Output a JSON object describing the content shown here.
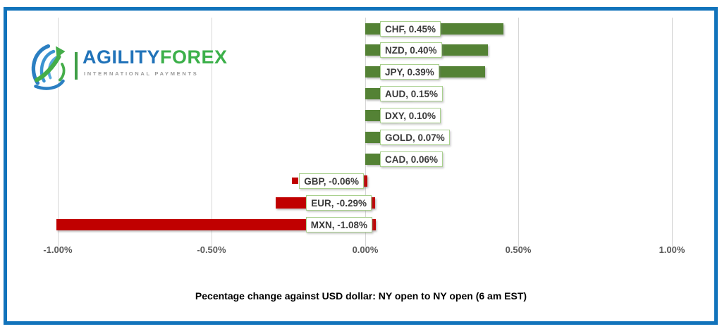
{
  "logo": {
    "brand_primary": "AGILITY",
    "brand_secondary": "FOREX",
    "tagline": "INTERNATIONAL PAYMENTS",
    "brand_primary_color": "#2173B9",
    "brand_secondary_color": "#3CB04A"
  },
  "frame": {
    "border_color": "#1173BB"
  },
  "chart_data": {
    "type": "bar",
    "orientation": "horizontal",
    "title": "Pecentage change against USD dollar: NY open to NY open  (6 am EST)",
    "categories": [
      "CHF",
      "NZD",
      "JPY",
      "AUD",
      "DXY",
      "GOLD",
      "CAD",
      "GBP",
      "EUR",
      "MXN"
    ],
    "values": [
      0.45,
      0.4,
      0.39,
      0.15,
      0.1,
      0.07,
      0.06,
      -0.06,
      -0.29,
      -1.08
    ],
    "labels": [
      "CHF, 0.45%",
      "NZD, 0.40%",
      "JPY, 0.39%",
      "AUD, 0.15%",
      "DXY, 0.10%",
      "GOLD, 0.07%",
      "CAD, 0.06%",
      "GBP, -0.06%",
      "EUR, -0.29%",
      "MXN, -1.08%"
    ],
    "x_ticks": [
      "-1.00%",
      "-0.50%",
      "0.00%",
      "0.50%",
      "1.00%"
    ],
    "x_tick_values": [
      -1.0,
      -0.5,
      0.0,
      0.5,
      1.0
    ],
    "xlim": [
      -1.0,
      1.0
    ],
    "grid": true,
    "legend": "none",
    "positive_color": "#548235",
    "negative_color": "#C00000",
    "label_box_border_color": "#A9D08E",
    "label_text_color": "#3A3A3A",
    "axis_text_color": "#595959",
    "gridline_color": "#D6D6D6"
  }
}
